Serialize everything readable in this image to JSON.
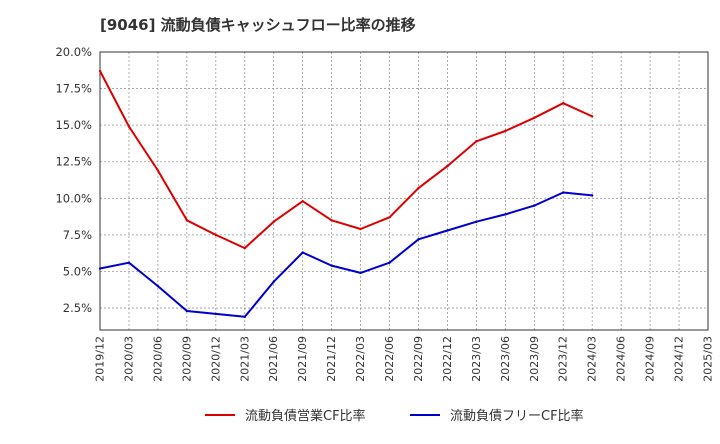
{
  "chart_data": {
    "type": "line",
    "title": "[9046]  流動負債キャッシュフロー比率の推移",
    "xlabel": "",
    "ylabel": "",
    "x": [
      "2019/12",
      "2020/03",
      "2020/06",
      "2020/09",
      "2020/12",
      "2021/03",
      "2021/06",
      "2021/09",
      "2021/12",
      "2022/03",
      "2022/06",
      "2022/09",
      "2022/12",
      "2023/03",
      "2023/06",
      "2023/09",
      "2023/12",
      "2024/03",
      "2024/06",
      "2024/09",
      "2024/12",
      "2025/03"
    ],
    "ylim": [
      1.0,
      20.0
    ],
    "y_ticks": [
      2.5,
      5.0,
      7.5,
      10.0,
      12.5,
      15.0,
      17.5,
      20.0
    ],
    "y_tick_labels": [
      "2.5%",
      "5.0%",
      "7.5%",
      "10.0%",
      "12.5%",
      "15.0%",
      "17.5%",
      "20.0%"
    ],
    "grid": true,
    "legend_position": "bottom",
    "series": [
      {
        "name": "流動負債営業CF比率",
        "color": "#dd0000",
        "values": [
          18.7,
          14.9,
          11.9,
          8.5,
          7.5,
          6.6,
          8.4,
          9.8,
          8.5,
          7.9,
          8.7,
          10.7,
          12.2,
          13.9,
          14.6,
          15.5,
          16.5,
          15.6,
          null,
          null,
          null,
          null
        ]
      },
      {
        "name": "流動負債フリーCF比率",
        "color": "#0000cc",
        "values": [
          5.2,
          5.6,
          4.0,
          2.3,
          2.1,
          1.9,
          4.3,
          6.3,
          5.4,
          4.9,
          5.6,
          7.2,
          7.8,
          8.4,
          8.9,
          9.5,
          10.4,
          10.2,
          null,
          null,
          null,
          null
        ]
      }
    ]
  }
}
